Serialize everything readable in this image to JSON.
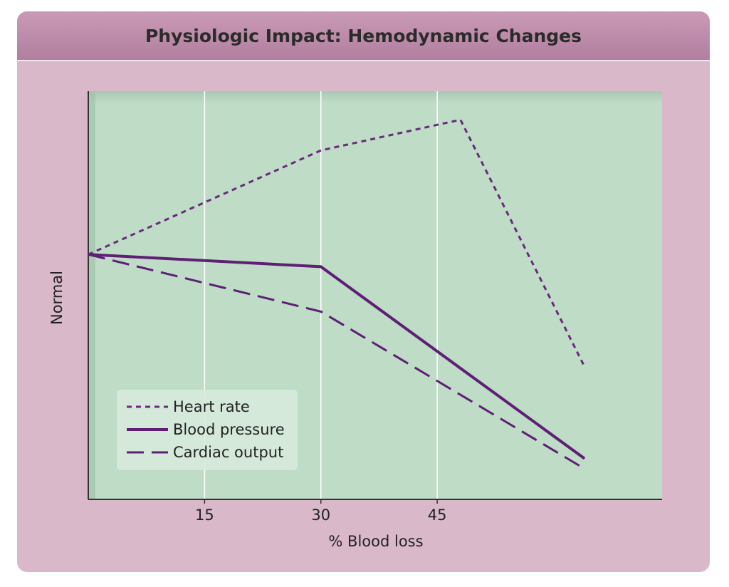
{
  "chart_data": {
    "type": "line",
    "title": "Physiologic Impact: Hemodynamic Changes",
    "xlabel": "% Blood loss",
    "ylabel": "Normal",
    "x_ticks": [
      15,
      30,
      45
    ],
    "xlim": [
      0,
      74
    ],
    "ylim": [
      0,
      100
    ],
    "grid": "vertical",
    "legend_position": "bottom-left",
    "series": [
      {
        "name": "Heart rate",
        "style": "dotted",
        "color": "#6a2a7a",
        "points": [
          [
            0,
            60
          ],
          [
            30,
            85.5
          ],
          [
            48,
            93
          ],
          [
            64,
            32.5
          ]
        ]
      },
      {
        "name": "Blood pressure",
        "style": "solid",
        "color": "#5e1f75",
        "points": [
          [
            0,
            60
          ],
          [
            30,
            57
          ],
          [
            64,
            10
          ]
        ]
      },
      {
        "name": "Cardiac output",
        "style": "dashed",
        "color": "#5e1f75",
        "points": [
          [
            0,
            60
          ],
          [
            30,
            46
          ],
          [
            64,
            7.5
          ]
        ]
      }
    ]
  },
  "colors": {
    "plot_background": "#bfdcc7",
    "card_background": "#d9b8c9",
    "gridline": "#ffffff",
    "line": "#5e1f75"
  }
}
